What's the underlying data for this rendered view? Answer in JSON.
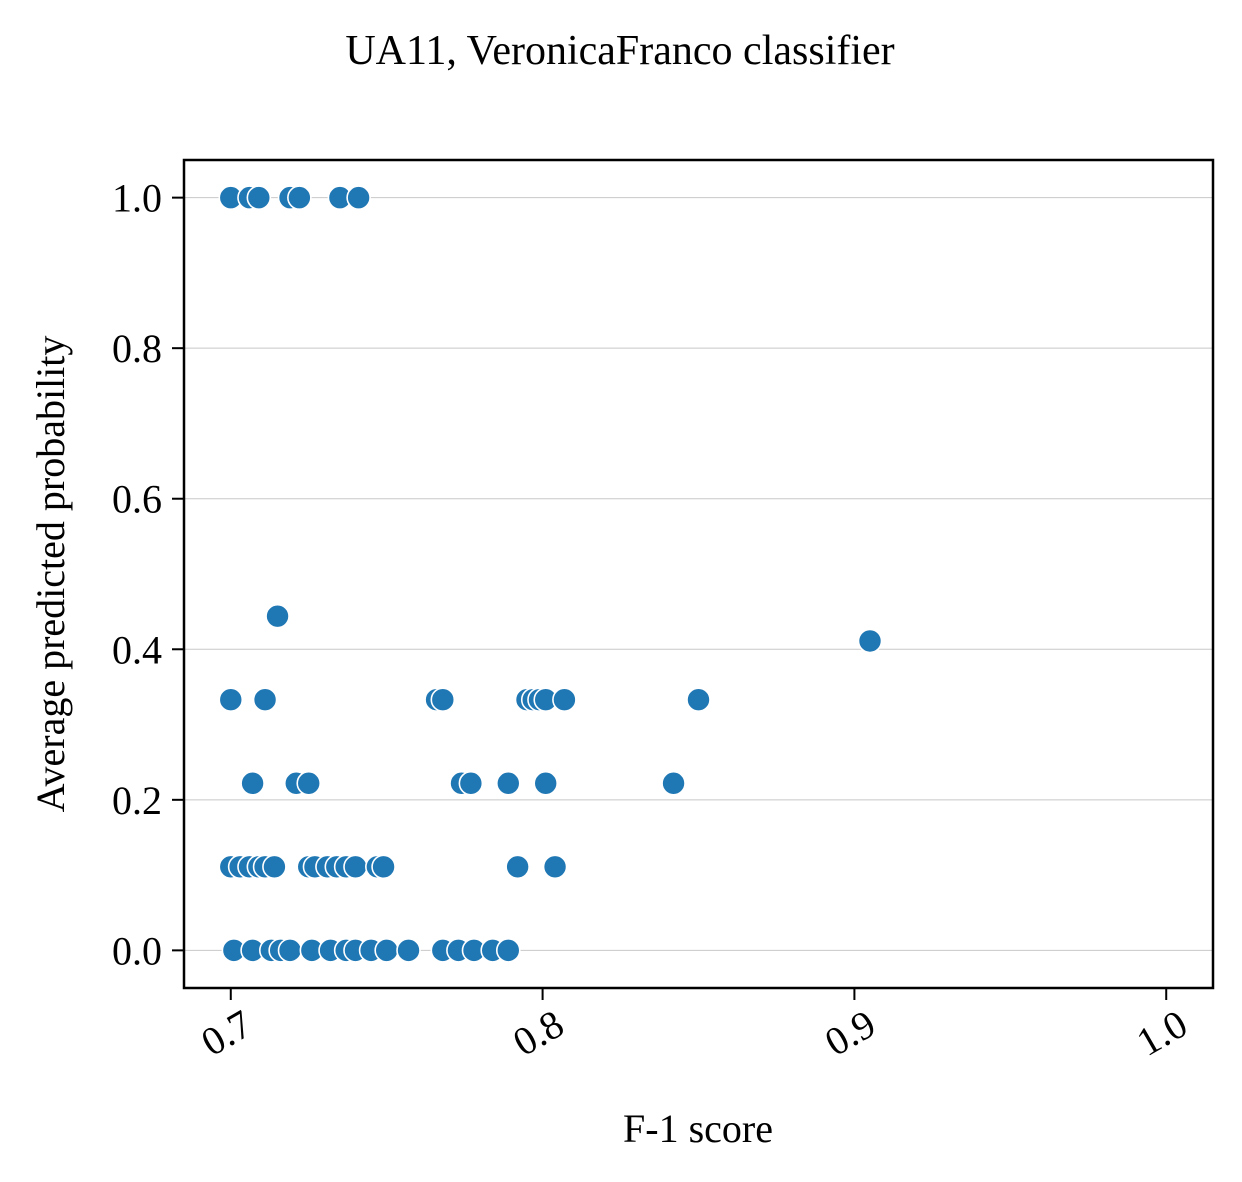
{
  "chart_data": {
    "type": "scatter",
    "title": "UA11, VeronicaFranco classifier",
    "xlabel": "F-1 score",
    "ylabel": "Average predicted probability",
    "xlim": [
      0.685,
      1.015
    ],
    "ylim": [
      -0.05,
      1.05
    ],
    "xticks": [
      0.7,
      0.8,
      0.9,
      1.0
    ],
    "xtick_labels": [
      "0.7",
      "0.8",
      "0.9",
      "1.0"
    ],
    "xtick_rotation": -30,
    "yticks": [
      0.0,
      0.2,
      0.4,
      0.6,
      0.8,
      1.0
    ],
    "ytick_labels": [
      "0.0",
      "0.2",
      "0.4",
      "0.6",
      "0.8",
      "1.0"
    ],
    "grid": "horizontal",
    "marker_color": "#1f77b4",
    "marker_edge_color": "#ffffff",
    "points": [
      {
        "x": 0.7,
        "y": 1.0
      },
      {
        "x": 0.706,
        "y": 1.0
      },
      {
        "x": 0.709,
        "y": 1.0
      },
      {
        "x": 0.719,
        "y": 1.0
      },
      {
        "x": 0.722,
        "y": 1.0
      },
      {
        "x": 0.735,
        "y": 1.0
      },
      {
        "x": 0.741,
        "y": 1.0
      },
      {
        "x": 0.715,
        "y": 0.444
      },
      {
        "x": 0.905,
        "y": 0.411
      },
      {
        "x": 0.7,
        "y": 0.333
      },
      {
        "x": 0.711,
        "y": 0.333
      },
      {
        "x": 0.766,
        "y": 0.333
      },
      {
        "x": 0.768,
        "y": 0.333
      },
      {
        "x": 0.795,
        "y": 0.333
      },
      {
        "x": 0.797,
        "y": 0.333
      },
      {
        "x": 0.799,
        "y": 0.333
      },
      {
        "x": 0.801,
        "y": 0.333
      },
      {
        "x": 0.807,
        "y": 0.333
      },
      {
        "x": 0.85,
        "y": 0.333
      },
      {
        "x": 0.707,
        "y": 0.222
      },
      {
        "x": 0.721,
        "y": 0.222
      },
      {
        "x": 0.725,
        "y": 0.222
      },
      {
        "x": 0.774,
        "y": 0.222
      },
      {
        "x": 0.777,
        "y": 0.222
      },
      {
        "x": 0.789,
        "y": 0.222
      },
      {
        "x": 0.801,
        "y": 0.222
      },
      {
        "x": 0.842,
        "y": 0.222
      },
      {
        "x": 0.7,
        "y": 0.111
      },
      {
        "x": 0.703,
        "y": 0.111
      },
      {
        "x": 0.706,
        "y": 0.111
      },
      {
        "x": 0.709,
        "y": 0.111
      },
      {
        "x": 0.711,
        "y": 0.111
      },
      {
        "x": 0.714,
        "y": 0.111
      },
      {
        "x": 0.725,
        "y": 0.111
      },
      {
        "x": 0.727,
        "y": 0.111
      },
      {
        "x": 0.731,
        "y": 0.111
      },
      {
        "x": 0.734,
        "y": 0.111
      },
      {
        "x": 0.737,
        "y": 0.111
      },
      {
        "x": 0.74,
        "y": 0.111
      },
      {
        "x": 0.747,
        "y": 0.111
      },
      {
        "x": 0.749,
        "y": 0.111
      },
      {
        "x": 0.792,
        "y": 0.111
      },
      {
        "x": 0.804,
        "y": 0.111
      },
      {
        "x": 0.701,
        "y": 0.0
      },
      {
        "x": 0.707,
        "y": 0.0
      },
      {
        "x": 0.713,
        "y": 0.0
      },
      {
        "x": 0.716,
        "y": 0.0
      },
      {
        "x": 0.719,
        "y": 0.0
      },
      {
        "x": 0.726,
        "y": 0.0
      },
      {
        "x": 0.732,
        "y": 0.0
      },
      {
        "x": 0.737,
        "y": 0.0
      },
      {
        "x": 0.74,
        "y": 0.0
      },
      {
        "x": 0.745,
        "y": 0.0
      },
      {
        "x": 0.75,
        "y": 0.0
      },
      {
        "x": 0.757,
        "y": 0.0
      },
      {
        "x": 0.768,
        "y": 0.0
      },
      {
        "x": 0.773,
        "y": 0.0
      },
      {
        "x": 0.778,
        "y": 0.0
      },
      {
        "x": 0.784,
        "y": 0.0
      },
      {
        "x": 0.789,
        "y": 0.0
      }
    ]
  }
}
